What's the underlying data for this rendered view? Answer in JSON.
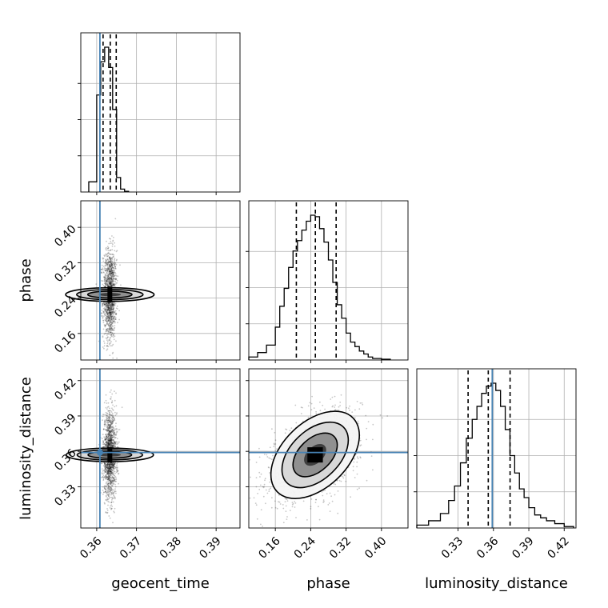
{
  "chart_data": {
    "type": "corner",
    "parameters": [
      "geocent_time",
      "phase",
      "luminosity_distance"
    ],
    "truth": {
      "geocent_time": 0.3608,
      "phase": null,
      "luminosity_distance": 0.359
    },
    "truth_color": "#4682b4",
    "grid": true,
    "marginals": [
      {
        "parameter": "geocent_time",
        "xlim": [
          0.356,
          0.396
        ],
        "ticks": [
          "0.36",
          "0.37",
          "0.38",
          "0.39"
        ],
        "tick_values": [
          0.36,
          0.37,
          0.38,
          0.39
        ],
        "quantiles": [
          0.3616,
          0.3634,
          0.3649
        ],
        "hist_edges": [
          0.358,
          0.36,
          0.361,
          0.362,
          0.363,
          0.364,
          0.365,
          0.366,
          0.367,
          0.368
        ],
        "hist_counts": [
          0.07,
          0.67,
          0.9,
          1.0,
          0.86,
          0.57,
          0.1,
          0.02,
          0.005
        ]
      },
      {
        "parameter": "phase",
        "xlim": [
          0.1,
          0.46
        ],
        "ticks": [
          "0.16",
          "0.24",
          "0.32",
          "0.40"
        ],
        "tick_values": [
          0.16,
          0.24,
          0.32,
          0.4
        ],
        "quantiles": [
          0.2075,
          0.2505,
          0.2975
        ],
        "hist_edges": [
          0.1,
          0.12,
          0.14,
          0.16,
          0.17,
          0.18,
          0.19,
          0.2,
          0.21,
          0.22,
          0.23,
          0.24,
          0.25,
          0.26,
          0.27,
          0.28,
          0.29,
          0.3,
          0.31,
          0.32,
          0.33,
          0.34,
          0.35,
          0.36,
          0.37,
          0.38,
          0.4,
          0.42
        ],
        "hist_counts": [
          0.02,
          0.05,
          0.1,
          0.22,
          0.36,
          0.48,
          0.62,
          0.73,
          0.8,
          0.87,
          0.93,
          0.97,
          0.96,
          0.88,
          0.79,
          0.67,
          0.52,
          0.37,
          0.28,
          0.18,
          0.12,
          0.09,
          0.06,
          0.04,
          0.02,
          0.01,
          0.005
        ]
      },
      {
        "parameter": "luminosity_distance",
        "xlim": [
          0.295,
          0.43
        ],
        "ticks": [
          "0.33",
          "0.36",
          "0.39",
          "0.42"
        ],
        "tick_values": [
          0.33,
          0.36,
          0.39,
          0.42
        ],
        "quantiles": [
          0.3385,
          0.3556,
          0.3741
        ],
        "hist_edges": [
          0.295,
          0.305,
          0.315,
          0.322,
          0.327,
          0.332,
          0.337,
          0.342,
          0.346,
          0.35,
          0.354,
          0.358,
          0.362,
          0.366,
          0.37,
          0.374,
          0.378,
          0.382,
          0.386,
          0.39,
          0.395,
          0.4,
          0.405,
          0.412,
          0.42,
          0.428
        ],
        "hist_counts": [
          0.02,
          0.05,
          0.1,
          0.19,
          0.29,
          0.45,
          0.62,
          0.75,
          0.84,
          0.93,
          0.98,
          1.0,
          0.95,
          0.84,
          0.68,
          0.5,
          0.38,
          0.27,
          0.21,
          0.14,
          0.09,
          0.07,
          0.05,
          0.03,
          0.01
        ]
      }
    ],
    "joint": [
      {
        "x": "geocent_time",
        "y": "phase",
        "ylim": [
          0.1,
          0.46
        ],
        "yticks": [
          "0.16",
          "0.24",
          "0.32",
          "0.40"
        ],
        "ytick_values": [
          0.16,
          0.24,
          0.32,
          0.4
        ],
        "center": [
          0.3633,
          0.248
        ],
        "sigma": [
          0.00085,
          0.05
        ],
        "rho": 0.0
      },
      {
        "x": "geocent_time",
        "y": "luminosity_distance",
        "ylim": [
          0.295,
          0.43
        ],
        "yticks": [
          "0.33",
          "0.36",
          "0.39",
          "0.42"
        ],
        "ytick_values": [
          0.33,
          0.36,
          0.39,
          0.42
        ],
        "center": [
          0.3633,
          0.357
        ],
        "sigma": [
          0.00085,
          0.0185
        ],
        "rho": 0.0
      },
      {
        "x": "phase",
        "y": "luminosity_distance",
        "ylim": [
          0.295,
          0.43
        ],
        "yticks": [
          "0.33",
          "0.36",
          "0.39",
          "0.42"
        ],
        "ytick_values": [
          0.33,
          0.36,
          0.39,
          0.42
        ],
        "center": [
          0.25,
          0.357
        ],
        "sigma": [
          0.05,
          0.0185
        ],
        "rho": 0.45
      }
    ]
  }
}
